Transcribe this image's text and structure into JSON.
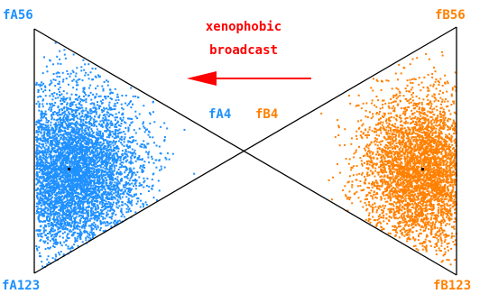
{
  "colors": {
    "population_a": "#1e90ff",
    "population_b": "#ff8000",
    "broadcast": "#ff0000",
    "lines": "#000000"
  },
  "triangle_a": {
    "top_label": "fA56",
    "bottom_label": "fA123",
    "apex_label": "fA4"
  },
  "triangle_b": {
    "top_label": "fB56",
    "bottom_label": "fB123",
    "apex_label": "fB4"
  },
  "broadcast": {
    "line1": "xenophobic",
    "line2": "broadcast",
    "arrow_direction": "left"
  }
}
